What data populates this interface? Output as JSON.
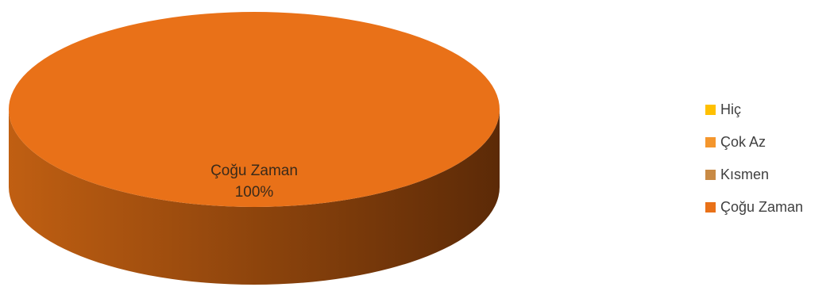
{
  "chart_data": {
    "type": "pie",
    "title": "",
    "categories": [
      "Hiç",
      "Çok Az",
      "Kısmen",
      "Çoğu Zaman"
    ],
    "values": [
      0,
      0,
      0,
      100
    ],
    "unit": "%",
    "colors": [
      "#FFC000",
      "#F4962D",
      "#C88A45",
      "#E97118"
    ],
    "side_colors": {
      "light": "#C05F12",
      "dark": "#5C2A07"
    },
    "three_d": true,
    "legend_position": "right",
    "data_labels": [
      {
        "category": "Çoğu Zaman",
        "text": "Çoğu Zaman",
        "value_text": "100%"
      }
    ]
  }
}
